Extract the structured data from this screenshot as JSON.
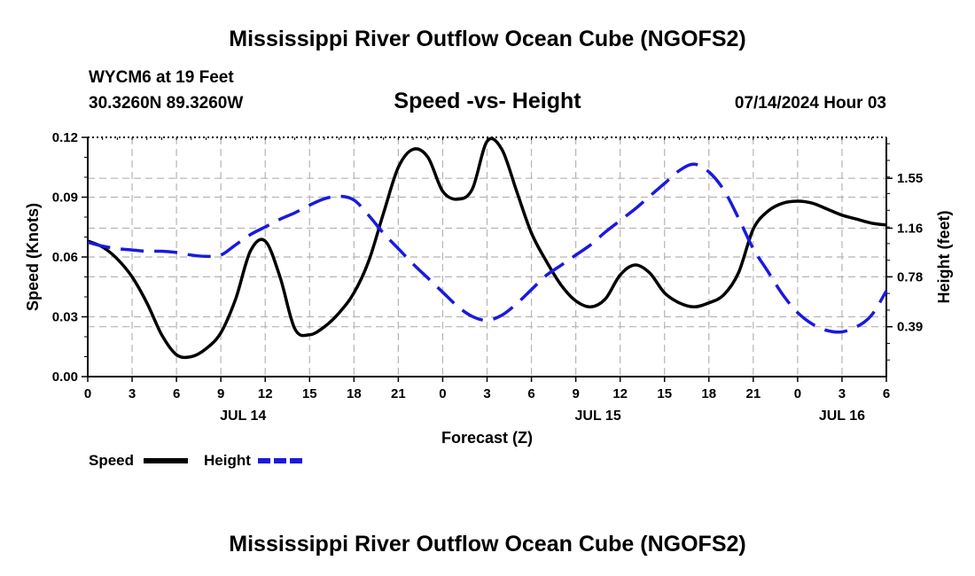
{
  "colors": {
    "speed": "#000000",
    "height": "#1a1adc",
    "grid": "#b4b4b4"
  },
  "chart_data": {
    "type": "line",
    "title": "Mississippi River Outflow Ocean Cube (NGOFS2)",
    "station": "WYCM6 at 19 Feet",
    "coordinates": "30.3260N  89.3260W",
    "subtitle": "Speed -vs- Height",
    "datetime": "07/14/2024 Hour 03",
    "xlabel": "Forecast (Z)",
    "ylabel_left": "Speed (Knots)",
    "ylabel_right": "Height (feet)",
    "x_range": [
      0,
      54
    ],
    "x_ticks": [
      {
        "h": 0,
        "label": "0"
      },
      {
        "h": 3,
        "label": "3"
      },
      {
        "h": 6,
        "label": "6"
      },
      {
        "h": 9,
        "label": "9"
      },
      {
        "h": 12,
        "label": "12"
      },
      {
        "h": 15,
        "label": "15"
      },
      {
        "h": 18,
        "label": "18"
      },
      {
        "h": 21,
        "label": "21"
      },
      {
        "h": 24,
        "label": "0"
      },
      {
        "h": 27,
        "label": "3"
      },
      {
        "h": 30,
        "label": "6"
      },
      {
        "h": 33,
        "label": "9"
      },
      {
        "h": 36,
        "label": "12"
      },
      {
        "h": 39,
        "label": "15"
      },
      {
        "h": 42,
        "label": "18"
      },
      {
        "h": 45,
        "label": "21"
      },
      {
        "h": 48,
        "label": "0"
      },
      {
        "h": 51,
        "label": "3"
      },
      {
        "h": 54,
        "label": "6"
      }
    ],
    "date_labels": [
      {
        "h": 10.5,
        "label": "JUL 14"
      },
      {
        "h": 34.5,
        "label": "JUL 15"
      },
      {
        "h": 51,
        "label": "JUL 16"
      }
    ],
    "y_left": {
      "range": [
        0,
        0.12
      ],
      "ticks": [
        "0.00",
        "0.03",
        "0.06",
        "0.09",
        "0.12"
      ]
    },
    "y_right": {
      "range": [
        0.0,
        1.87
      ],
      "ticks": [
        0.39,
        0.78,
        1.16,
        1.55
      ],
      "tick_labels": [
        "0.39",
        "0.78",
        "1.16",
        "1.55"
      ]
    },
    "series": [
      {
        "name": "Speed",
        "axis": "left",
        "style": "solid",
        "x": [
          0,
          1,
          2,
          3,
          4,
          5,
          6,
          7,
          8,
          9,
          10,
          11,
          12,
          13,
          14,
          15,
          16,
          17,
          18,
          19,
          20,
          21,
          22,
          23,
          24,
          25,
          26,
          27,
          28,
          29,
          30,
          31,
          32,
          33,
          34,
          35,
          36,
          37,
          38,
          39,
          40,
          41,
          42,
          43,
          44,
          45,
          46,
          47,
          48,
          49,
          50,
          51,
          52,
          53,
          54
        ],
        "values": [
          0.068,
          0.065,
          0.059,
          0.05,
          0.037,
          0.021,
          0.011,
          0.01,
          0.014,
          0.022,
          0.039,
          0.063,
          0.068,
          0.05,
          0.024,
          0.021,
          0.025,
          0.032,
          0.042,
          0.058,
          0.082,
          0.105,
          0.114,
          0.11,
          0.093,
          0.089,
          0.094,
          0.118,
          0.114,
          0.093,
          0.072,
          0.058,
          0.046,
          0.038,
          0.035,
          0.039,
          0.051,
          0.056,
          0.052,
          0.042,
          0.037,
          0.035,
          0.037,
          0.041,
          0.052,
          0.074,
          0.083,
          0.087,
          0.088,
          0.087,
          0.084,
          0.081,
          0.079,
          0.077,
          0.076
        ]
      },
      {
        "name": "Height",
        "axis": "right",
        "style": "dashed",
        "x": [
          0,
          1,
          2,
          3,
          4,
          5,
          6,
          7,
          8,
          9,
          10,
          11,
          12,
          13,
          14,
          15,
          16,
          17,
          18,
          19,
          20,
          21,
          22,
          23,
          24,
          25,
          26,
          27,
          28,
          29,
          30,
          31,
          32,
          33,
          34,
          35,
          36,
          37,
          38,
          39,
          40,
          41,
          42,
          43,
          44,
          45,
          46,
          47,
          48,
          49,
          50,
          51,
          52,
          53,
          54
        ],
        "values": [
          1.05,
          1.02,
          1.0,
          0.99,
          0.98,
          0.98,
          0.97,
          0.95,
          0.94,
          0.95,
          1.03,
          1.11,
          1.17,
          1.23,
          1.28,
          1.34,
          1.39,
          1.41,
          1.38,
          1.26,
          1.12,
          1.0,
          0.88,
          0.77,
          0.66,
          0.55,
          0.47,
          0.44,
          0.48,
          0.57,
          0.68,
          0.79,
          0.87,
          0.95,
          1.03,
          1.13,
          1.22,
          1.31,
          1.41,
          1.51,
          1.61,
          1.66,
          1.6,
          1.46,
          1.24,
          1.0,
          0.82,
          0.64,
          0.5,
          0.41,
          0.36,
          0.35,
          0.39,
          0.48,
          0.67
        ]
      }
    ],
    "legend": [
      {
        "label": "Speed"
      },
      {
        "label": "Height"
      }
    ]
  }
}
